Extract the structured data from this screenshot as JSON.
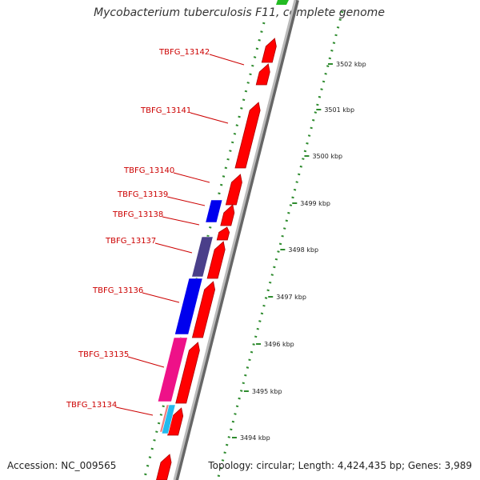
{
  "title": "Mycobacterium tuberculosis F11, complete genome",
  "footer": {
    "accession": "Accession: NC_009565",
    "topology": "Topology: circular; Length: 4,424,435 bp; Genes: 3,989"
  },
  "colors": {
    "forward": "#ff0000",
    "reverse_blue": "#0000ee",
    "reverse_slate": "#4a3f8a",
    "reverse_magenta": "#ee1188",
    "reverse_cyan": "#22bbee",
    "reverse_salmon": "#f08080",
    "green_top": "#22bb22",
    "backbone": "#999999",
    "tick": "#2e8b2e",
    "label": "#cc0000"
  },
  "gene_labels": [
    {
      "name": "TBFG_13142"
    },
    {
      "name": "TBFG_13141"
    },
    {
      "name": "TBFG_13140"
    },
    {
      "name": "TBFG_13139"
    },
    {
      "name": "TBFG_13138"
    },
    {
      "name": "TBFG_13137"
    },
    {
      "name": "TBFG_13136"
    },
    {
      "name": "TBFG_13135"
    },
    {
      "name": "TBFG_13134"
    }
  ],
  "scale_labels": [
    "3502 kbp",
    "3501 kbp",
    "3500 kbp",
    "3499 kbp",
    "3498 kbp",
    "3497 kbp",
    "3496 kbp",
    "3495 kbp",
    "3494 kbp"
  ]
}
